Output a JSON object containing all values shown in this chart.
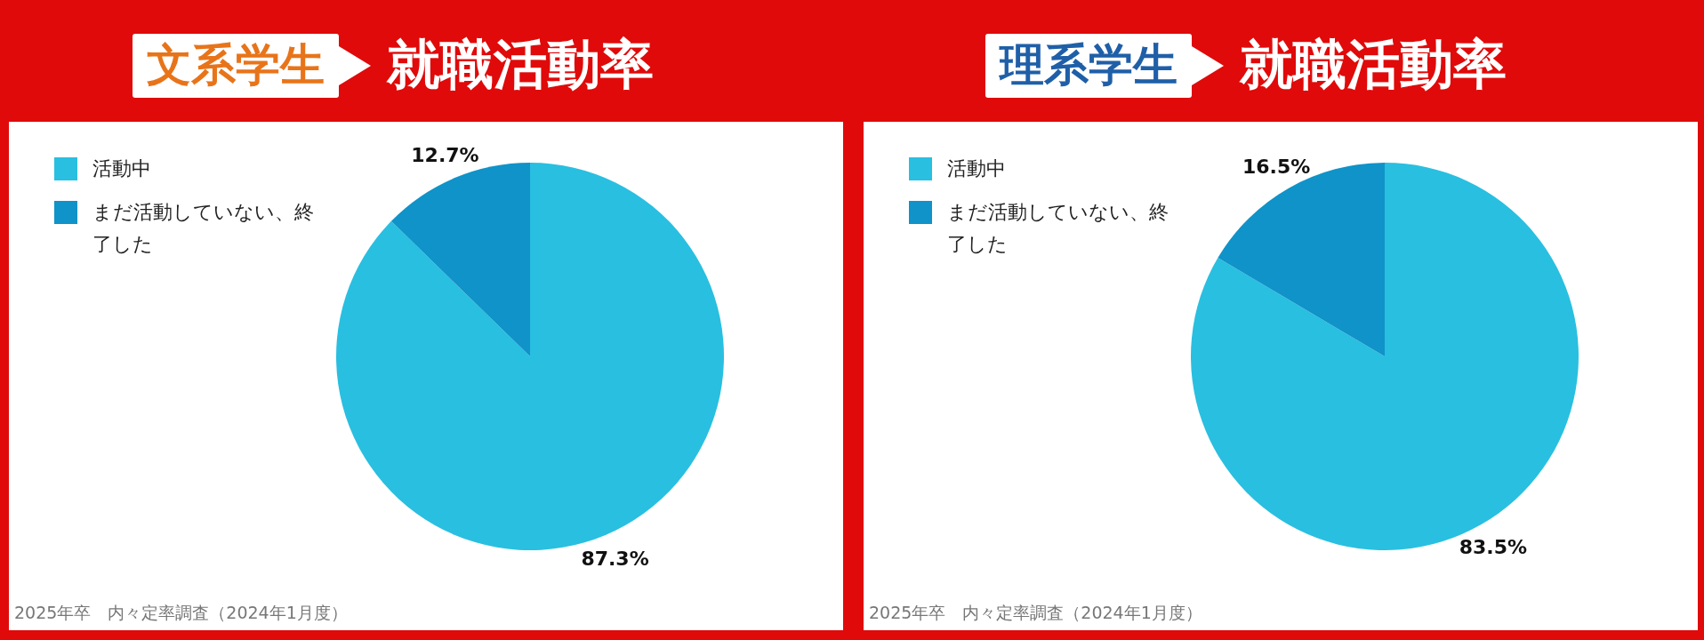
{
  "chart_data": [
    {
      "type": "pie",
      "title": "文系学生",
      "subtitle": "就職活動率",
      "categories": [
        "活動中",
        "まだ活動していない、終了した"
      ],
      "values": [
        87.3,
        12.7
      ],
      "colors": [
        "#29bfe0",
        "#0f93c8"
      ],
      "value_labels": [
        "87.3%",
        "12.7%"
      ],
      "legend": "top left",
      "annotations": [
        "2025年卒　内々定率調査（2024年1月度）"
      ]
    },
    {
      "type": "pie",
      "title": "理系学生",
      "subtitle": "就職活動率",
      "categories": [
        "活動中",
        "まだ活動していない、終了した"
      ],
      "values": [
        83.5,
        16.5
      ],
      "colors": [
        "#29bfe0",
        "#0f93c8"
      ],
      "value_labels": [
        "83.5%",
        "16.5%"
      ],
      "legend": "top left",
      "annotations": [
        "2025年卒　内々定率調査（2024年1月度）"
      ]
    }
  ]
}
